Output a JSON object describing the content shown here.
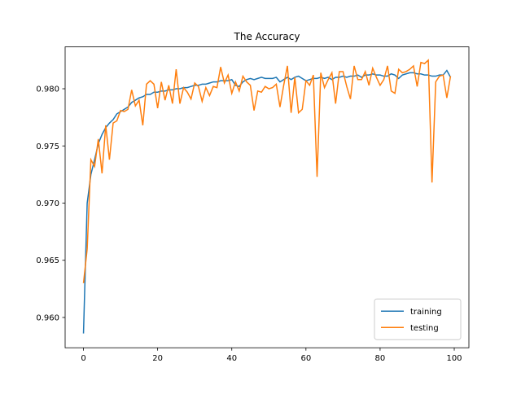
{
  "chart_data": {
    "type": "line",
    "title": "The Accuracy",
    "x": [
      0,
      1,
      2,
      3,
      4,
      5,
      6,
      7,
      8,
      9,
      10,
      11,
      12,
      13,
      14,
      15,
      16,
      17,
      18,
      19,
      20,
      21,
      22,
      23,
      24,
      25,
      26,
      27,
      28,
      29,
      30,
      31,
      32,
      33,
      34,
      35,
      36,
      37,
      38,
      39,
      40,
      41,
      42,
      43,
      44,
      45,
      46,
      47,
      48,
      49,
      50,
      51,
      52,
      53,
      54,
      55,
      56,
      57,
      58,
      59,
      60,
      61,
      62,
      63,
      64,
      65,
      66,
      67,
      68,
      69,
      70,
      71,
      72,
      73,
      74,
      75,
      76,
      77,
      78,
      79,
      80,
      81,
      82,
      83,
      84,
      85,
      86,
      87,
      88,
      89,
      90,
      91,
      92,
      93,
      94,
      95,
      96,
      97,
      98,
      99
    ],
    "series": [
      {
        "name": "training",
        "color": "#1f77b4",
        "values": [
          0.9586,
          0.97,
          0.9725,
          0.9738,
          0.9752,
          0.976,
          0.9766,
          0.977,
          0.9773,
          0.9778,
          0.978,
          0.9782,
          0.9784,
          0.9788,
          0.979,
          0.9792,
          0.9793,
          0.9795,
          0.9795,
          0.9797,
          0.9797,
          0.9798,
          0.9798,
          0.9799,
          0.9799,
          0.98,
          0.98,
          0.9801,
          0.9801,
          0.9802,
          0.9803,
          0.9803,
          0.9804,
          0.9804,
          0.9805,
          0.9806,
          0.9806,
          0.9807,
          0.9807,
          0.9807,
          0.9808,
          0.9803,
          0.9802,
          0.9806,
          0.9808,
          0.9809,
          0.9808,
          0.9809,
          0.981,
          0.9809,
          0.9809,
          0.9809,
          0.981,
          0.9806,
          0.9808,
          0.981,
          0.9808,
          0.981,
          0.9811,
          0.9809,
          0.9807,
          0.9808,
          0.9809,
          0.9809,
          0.981,
          0.9809,
          0.981,
          0.9808,
          0.981,
          0.981,
          0.9811,
          0.981,
          0.9811,
          0.9811,
          0.9812,
          0.981,
          0.9812,
          0.9812,
          0.9813,
          0.9812,
          0.9812,
          0.9811,
          0.9811,
          0.9813,
          0.9812,
          0.9809,
          0.9812,
          0.9813,
          0.9814,
          0.9814,
          0.9813,
          0.9813,
          0.9812,
          0.9812,
          0.9811,
          0.9811,
          0.9812,
          0.9812,
          0.9816,
          0.981
        ]
      },
      {
        "name": "testing",
        "color": "#ff7f0e",
        "values": [
          0.963,
          0.966,
          0.9738,
          0.9732,
          0.9756,
          0.9726,
          0.9768,
          0.9738,
          0.977,
          0.9772,
          0.9781,
          0.978,
          0.9782,
          0.9799,
          0.9785,
          0.979,
          0.9768,
          0.9804,
          0.9807,
          0.9804,
          0.9783,
          0.9806,
          0.979,
          0.9803,
          0.9787,
          0.9817,
          0.9787,
          0.9801,
          0.9797,
          0.9791,
          0.9805,
          0.9802,
          0.9789,
          0.9801,
          0.9794,
          0.9802,
          0.9801,
          0.9819,
          0.9805,
          0.9812,
          0.9796,
          0.9806,
          0.9798,
          0.9811,
          0.9806,
          0.9803,
          0.9781,
          0.9798,
          0.9797,
          0.9802,
          0.98,
          0.9801,
          0.9804,
          0.9784,
          0.9803,
          0.982,
          0.9779,
          0.981,
          0.9779,
          0.9782,
          0.9807,
          0.9803,
          0.9812,
          0.9723,
          0.9814,
          0.9801,
          0.9808,
          0.9814,
          0.9787,
          0.9815,
          0.9815,
          0.9802,
          0.9791,
          0.982,
          0.9808,
          0.9808,
          0.9815,
          0.9803,
          0.9818,
          0.981,
          0.9803,
          0.9808,
          0.982,
          0.9798,
          0.9796,
          0.9817,
          0.9814,
          0.9815,
          0.9817,
          0.982,
          0.9802,
          0.9823,
          0.9822,
          0.9825,
          0.9718,
          0.9806,
          0.9811,
          0.9812,
          0.9792,
          0.9811
        ]
      }
    ],
    "xlim": [
      -4.95,
      103.95
    ],
    "ylim": [
      0.95735,
      0.98366
    ],
    "xticks": [
      0,
      20,
      40,
      60,
      80,
      100
    ],
    "yticks": [
      {
        "value": 0.96,
        "label": "0.960"
      },
      0.965,
      {
        "value": 0.97,
        "label": "0.970"
      },
      0.975,
      {
        "value": 0.98,
        "label": "0.980"
      }
    ],
    "legend": "lower right"
  }
}
